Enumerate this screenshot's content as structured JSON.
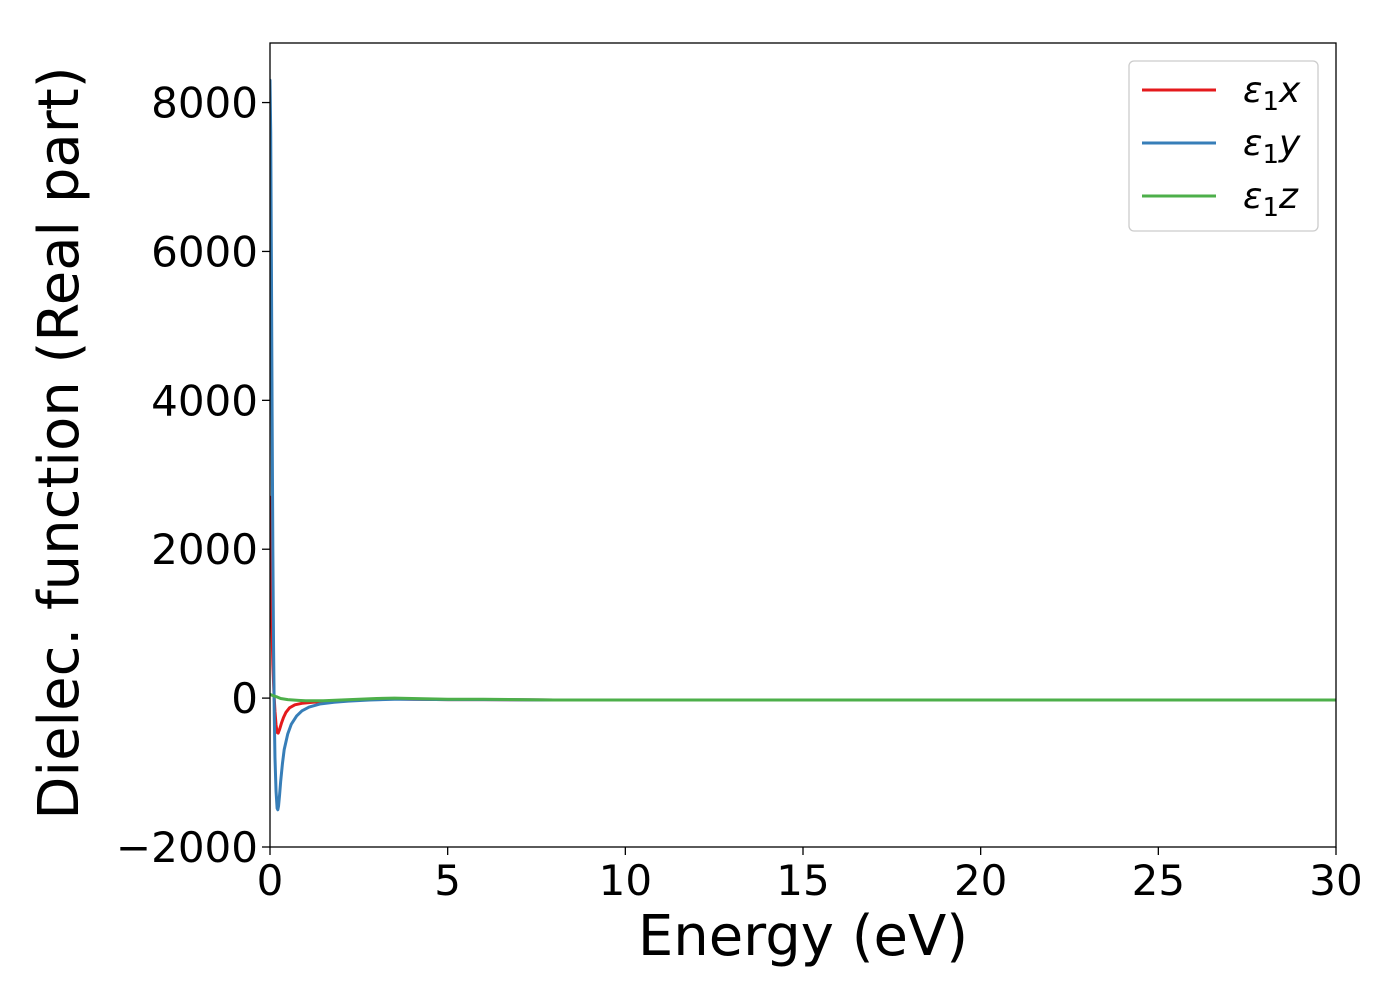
{
  "chart_data": {
    "type": "line",
    "title": "",
    "xlabel": "Energy (eV)",
    "ylabel": "Dielec. function (Real part)",
    "xlim": [
      0,
      30
    ],
    "ylim": [
      -2000,
      8800
    ],
    "xticks": [
      0,
      5,
      10,
      15,
      20,
      25,
      30
    ],
    "yticks": [
      -2000,
      0,
      2000,
      4000,
      6000,
      8000
    ],
    "xtick_labels": [
      "0",
      "5",
      "10",
      "15",
      "20",
      "25",
      "30"
    ],
    "ytick_labels": [
      "−2000",
      "0",
      "2000",
      "4000",
      "6000",
      "8000"
    ],
    "grid": false,
    "legend_position": "top-right",
    "series": [
      {
        "name": "ε₁x",
        "label_base": "ε",
        "label_sub": "1",
        "label_suffix": "x",
        "color": "#e41a1c",
        "x": [
          0.0,
          0.02,
          0.05,
          0.08,
          0.11,
          0.14,
          0.17,
          0.2,
          0.23,
          0.27,
          0.32,
          0.38,
          0.45,
          0.55,
          0.7,
          0.9,
          1.2,
          1.6,
          2.0,
          2.5,
          3.0,
          3.5,
          4.0,
          5.0,
          6.0,
          8.0,
          10.0,
          15.0,
          20.0,
          25.0,
          30.0
        ],
        "y": [
          2700,
          2200,
          1100,
          450,
          80,
          -180,
          -360,
          -460,
          -470,
          -420,
          -340,
          -260,
          -190,
          -130,
          -90,
          -70,
          -55,
          -45,
          -35,
          -25,
          -15,
          -10,
          -15,
          -20,
          -20,
          -25,
          -25,
          -25,
          -25,
          -25,
          -25
        ]
      },
      {
        "name": "ε₁y",
        "label_base": "ε",
        "label_sub": "1",
        "label_suffix": "y",
        "color": "#377eb8",
        "x": [
          0.0,
          0.02,
          0.04,
          0.06,
          0.08,
          0.1,
          0.12,
          0.14,
          0.17,
          0.2,
          0.22,
          0.24,
          0.27,
          0.3,
          0.35,
          0.4,
          0.5,
          0.6,
          0.75,
          0.9,
          1.1,
          1.4,
          1.8,
          2.2,
          2.8,
          3.5,
          4.0,
          5.0,
          6.0,
          8.0,
          10.0,
          15.0,
          20.0,
          25.0,
          30.0
        ],
        "y": [
          8300,
          7600,
          5800,
          3800,
          2000,
          700,
          -200,
          -800,
          -1250,
          -1480,
          -1500,
          -1450,
          -1300,
          -1120,
          -880,
          -690,
          -480,
          -350,
          -240,
          -170,
          -120,
          -80,
          -55,
          -40,
          -25,
          -15,
          -15,
          -20,
          -20,
          -25,
          -25,
          -25,
          -25,
          -25,
          -25
        ]
      },
      {
        "name": "ε₁z",
        "label_base": "ε",
        "label_sub": "1",
        "label_suffix": "z",
        "color": "#4daf4a",
        "x": [
          0.0,
          0.1,
          0.2,
          0.3,
          0.5,
          0.8,
          1.0,
          1.5,
          2.0,
          3.0,
          3.5,
          4.0,
          5.0,
          6.0,
          8.0,
          10.0,
          15.0,
          20.0,
          25.0,
          30.0
        ],
        "y": [
          50,
          30,
          15,
          -5,
          -20,
          -30,
          -35,
          -35,
          -25,
          -5,
          0,
          -5,
          -15,
          -15,
          -25,
          -25,
          -25,
          -25,
          -25,
          -25
        ]
      }
    ]
  }
}
